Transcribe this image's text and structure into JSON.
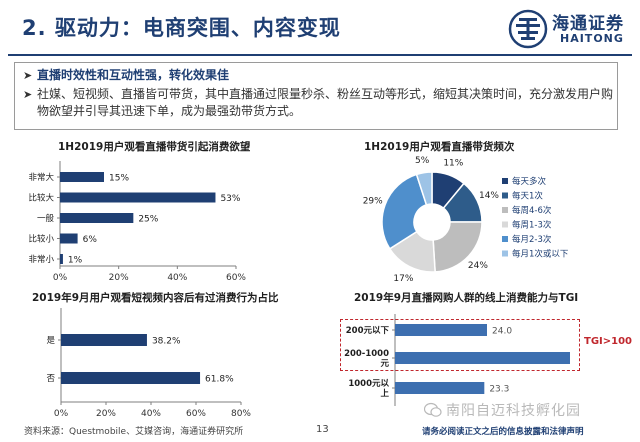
{
  "header": {
    "title": "2. 驱动力：电商突围、内容变现",
    "logo_cn": "海通证券",
    "logo_en": "HAITONG"
  },
  "bullets": [
    "直播时效性和互动性强，转化效果佳",
    "社媒、短视频、直播皆可带货，其中直播通过限量秒杀、粉丝互动等形式，缩短其决策时间，充分激发用户购物欲望并引导其迅速下单，成为最强劲带货方式。"
  ],
  "chart_data": [
    {
      "id": "desire",
      "type": "bar",
      "orientation": "horizontal",
      "title": "1H2019用户观看直播带货引起消费欲望",
      "categories": [
        "非常大",
        "比较大",
        "一般",
        "比较小",
        "非常小"
      ],
      "values": [
        15,
        53,
        25,
        6,
        1
      ],
      "value_labels": [
        "15%",
        "53%",
        "25%",
        "6%",
        "1%"
      ],
      "xlim": [
        0,
        60
      ],
      "xticks": [
        0,
        20,
        40,
        60
      ],
      "xtick_labels": [
        "0%",
        "20%",
        "40%",
        "60%"
      ],
      "color": "#1f3f73"
    },
    {
      "id": "frequency",
      "type": "pie",
      "style": "donut",
      "title": "1H2019用户观看直播带货频次",
      "labels": [
        "每天多次",
        "每天1次",
        "每周4-6次",
        "每周1-3次",
        "每月2-3次",
        "每月1次或以下"
      ],
      "values": [
        11,
        14,
        24,
        17,
        29,
        5
      ],
      "value_labels": [
        "11%",
        "14%",
        "24%",
        "17%",
        "29%",
        "5%"
      ],
      "colors": [
        "#1f3f73",
        "#2e5c8a",
        "#bdbdbd",
        "#d9d9d9",
        "#4f8fcc",
        "#9dc3e6"
      ],
      "legend_position": "right"
    },
    {
      "id": "short_video",
      "type": "bar",
      "orientation": "horizontal",
      "title": "2019年9月用户观看短视频内容后有过消费行为占比",
      "categories": [
        "是",
        "否"
      ],
      "values": [
        38.2,
        61.8
      ],
      "value_labels": [
        "38.2%",
        "61.8%"
      ],
      "xlim": [
        0,
        80
      ],
      "xticks": [
        0,
        20,
        40,
        60,
        80
      ],
      "xtick_labels": [
        "0%",
        "20%",
        "40%",
        "60%",
        "80%"
      ],
      "color": "#1f3f73"
    },
    {
      "id": "tgi",
      "type": "bar",
      "orientation": "horizontal",
      "title": "2019年9月直播网购人群的线上消费能力与TGI",
      "categories": [
        "200元以下",
        "200-1000元",
        "1000元以上"
      ],
      "values": [
        24.0,
        52.8,
        23.3
      ],
      "value_labels": [
        "24.0",
        "52.8",
        "23.3"
      ],
      "xlim": [
        0,
        60
      ],
      "highlight": "TGI>100",
      "color": "#3d6fb0"
    }
  ],
  "footer": {
    "source": "资料来源：Questmobile、艾媒咨询，海通证券研究所",
    "page_number": "13",
    "disclaimer": "请务必阅读正文之后的信息披露和法律声明",
    "watermark": "南阳自迈科技孵化园"
  }
}
